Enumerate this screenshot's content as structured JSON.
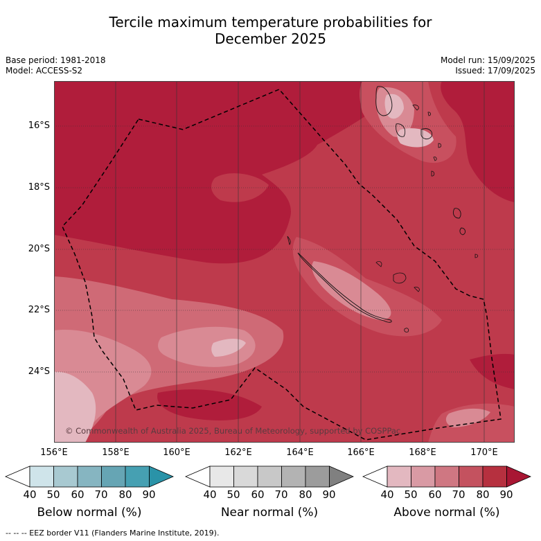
{
  "title_line1": "Tercile maximum temperature probabilities for",
  "title_line2": "December 2025",
  "meta_left": [
    "Base period: 1981-2018",
    "Model: ACCESS-S2"
  ],
  "meta_right": [
    "Model run: 15/09/2025",
    "Issued: 17/09/2025"
  ],
  "lat_labels": [
    "16°S",
    "18°S",
    "20°S",
    "22°S",
    "24°S"
  ],
  "lon_labels": [
    "156°E",
    "158°E",
    "160°E",
    "162°E",
    "164°E",
    "166°E",
    "168°E",
    "170°E"
  ],
  "copyright": "© Commonwealth of Australia 2025, Bureau of Meteorology, supported by COSPPac",
  "colorbars": [
    {
      "label": "Below normal (%)",
      "ticks": [
        "40",
        "50",
        "60",
        "70",
        "80",
        "90"
      ],
      "colors": [
        "#ffffff",
        "#cfe4ea",
        "#a8c9d1",
        "#86b5c1",
        "#66a5b4",
        "#46a0b2",
        "#2a93a8"
      ]
    },
    {
      "label": "Near normal (%)",
      "ticks": [
        "40",
        "50",
        "60",
        "70",
        "80",
        "90"
      ],
      "colors": [
        "#ffffff",
        "#e8e8e8",
        "#d9d9d9",
        "#c8c8c8",
        "#b3b3b3",
        "#9c9c9c",
        "#808080"
      ]
    },
    {
      "label": "Above normal (%)",
      "ticks": [
        "40",
        "50",
        "60",
        "70",
        "80",
        "90"
      ],
      "colors": [
        "#ffffff",
        "#e3b8c0",
        "#d99aa4",
        "#cf7782",
        "#c4525f",
        "#b6303f",
        "#a81633"
      ]
    }
  ],
  "legend_text": "--  --  -- EEZ border V11 (Flanders Marine Institute, 2019)."
}
